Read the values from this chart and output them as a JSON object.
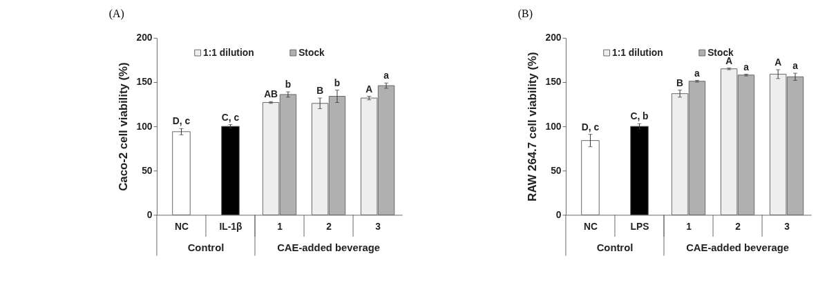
{
  "chart_data": [
    {
      "type": "bar",
      "title": "(A)",
      "ylabel": "Caco-2 cell viability (%)",
      "categories": [
        "NC",
        "IL-1β",
        "1",
        "2",
        "3"
      ],
      "ylim": [
        0,
        200
      ],
      "yticks": [
        0,
        50,
        100,
        150,
        200
      ],
      "grid": false,
      "legend": "top",
      "annotations": [
        "Control",
        "CAE-added beverage"
      ],
      "series": [
        {
          "colors": [
            "#ffffff",
            "#000000",
            null,
            null,
            null
          ],
          "values": [
            94,
            100,
            null,
            null,
            null
          ],
          "errors": [
            3.5,
            2,
            null,
            null,
            null
          ],
          "value_labels": [
            "D, c",
            "C, c",
            null,
            null,
            null
          ]
        },
        {
          "name": "1:1 dilution",
          "color": "#eeeeee",
          "values": [
            null,
            null,
            127,
            126,
            132
          ],
          "errors": [
            null,
            null,
            1,
            6,
            2
          ],
          "value_labels": [
            null,
            null,
            "AB",
            "B",
            "A"
          ]
        },
        {
          "name": "Stock",
          "color": "#b0b0b0",
          "values": [
            null,
            null,
            136,
            134,
            146
          ],
          "errors": [
            null,
            null,
            3,
            7,
            3
          ],
          "value_labels": [
            null,
            null,
            "b",
            "b",
            "a"
          ]
        }
      ]
    },
    {
      "type": "bar",
      "title": "(B)",
      "ylabel": "RAW 264.7 cell viability (%)",
      "categories": [
        "NC",
        "LPS",
        "1",
        "2",
        "3"
      ],
      "ylim": [
        0,
        200
      ],
      "yticks": [
        0,
        50,
        100,
        150,
        200
      ],
      "grid": false,
      "legend": "top",
      "annotations": [
        "Control",
        "CAE-added beverage"
      ],
      "series": [
        {
          "colors": [
            "#ffffff",
            "#000000",
            null,
            null,
            null
          ],
          "values": [
            84,
            100,
            null,
            null,
            null
          ],
          "errors": [
            7,
            3,
            null,
            null,
            null
          ],
          "value_labels": [
            "D, c",
            "C, b",
            null,
            null,
            null
          ]
        },
        {
          "name": "1:1 dilution",
          "color": "#eeeeee",
          "values": [
            null,
            null,
            137,
            165,
            159
          ],
          "errors": [
            null,
            null,
            4,
            1,
            5
          ],
          "value_labels": [
            null,
            null,
            "B",
            "A",
            "A"
          ]
        },
        {
          "name": "Stock",
          "color": "#b0b0b0",
          "values": [
            null,
            null,
            151,
            158,
            156
          ],
          "errors": [
            null,
            null,
            1,
            1,
            4
          ],
          "value_labels": [
            null,
            null,
            "a",
            "a",
            "a"
          ]
        }
      ]
    }
  ]
}
